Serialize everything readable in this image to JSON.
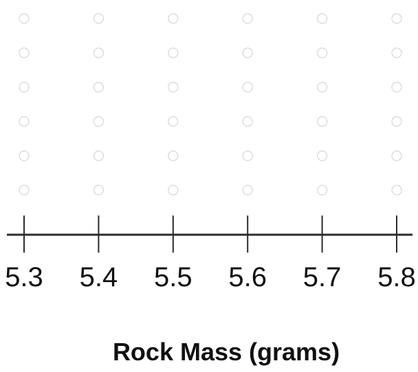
{
  "chart_data": {
    "type": "scatter",
    "title": "",
    "xlabel": "Rock Mass (grams)",
    "ylabel": "",
    "x_ticks": [
      "5.3",
      "5.4",
      "5.5",
      "5.6",
      "5.7",
      "5.8"
    ],
    "xlim": [
      5.3,
      5.8
    ],
    "max_stack": 6,
    "points": [],
    "grid": false,
    "legend": "none"
  },
  "colors": {
    "axis": "#2b2b2b",
    "slot_outline": "#d6d6d6",
    "text": "#111111"
  }
}
